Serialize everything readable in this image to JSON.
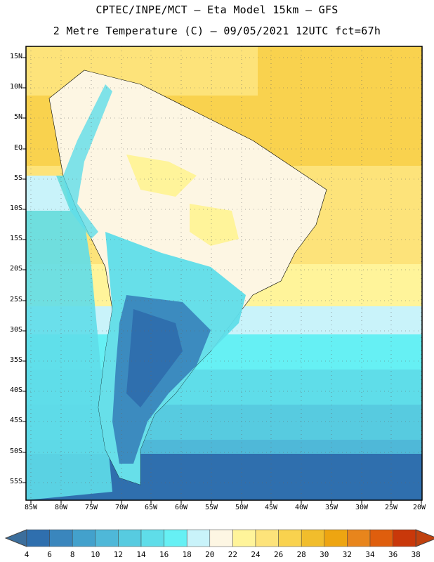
{
  "header": {
    "line1": "CPTEC/INPE/MCT –  Eta Model 15km – GFS",
    "line2": "2 Metre Temperature (C) – 09/05/2021 12UTC fct=67h"
  },
  "map": {
    "lat_labels": [
      "15N",
      "10N",
      "5N",
      "EQ",
      "5S",
      "10S",
      "15S",
      "20S",
      "25S",
      "30S",
      "35S",
      "40S",
      "45S",
      "50S",
      "55S"
    ],
    "lon_labels": [
      "85W",
      "80W",
      "75W",
      "70W",
      "65W",
      "60W",
      "55W",
      "50W",
      "45W",
      "40W",
      "35W",
      "30W",
      "25W",
      "20W"
    ]
  },
  "colorbar": {
    "labels": [
      "4",
      "6",
      "8",
      "10",
      "12",
      "14",
      "16",
      "18",
      "20",
      "22",
      "24",
      "26",
      "28",
      "30",
      "32",
      "34",
      "36",
      "38"
    ],
    "colors": [
      "#2f6fae",
      "#3a86bd",
      "#43a1cc",
      "#4fb8d8",
      "#57cbe0",
      "#5fdde9",
      "#66f0f4",
      "#c9f3fa",
      "#fdf6e3",
      "#fff49a",
      "#fde37a",
      "#f9d24e",
      "#f1bd2c",
      "#eea511",
      "#e8851c",
      "#df5e0d",
      "#c9380a"
    ],
    "low_color": "#3c6e9c",
    "high_color": "#c0410e"
  }
}
